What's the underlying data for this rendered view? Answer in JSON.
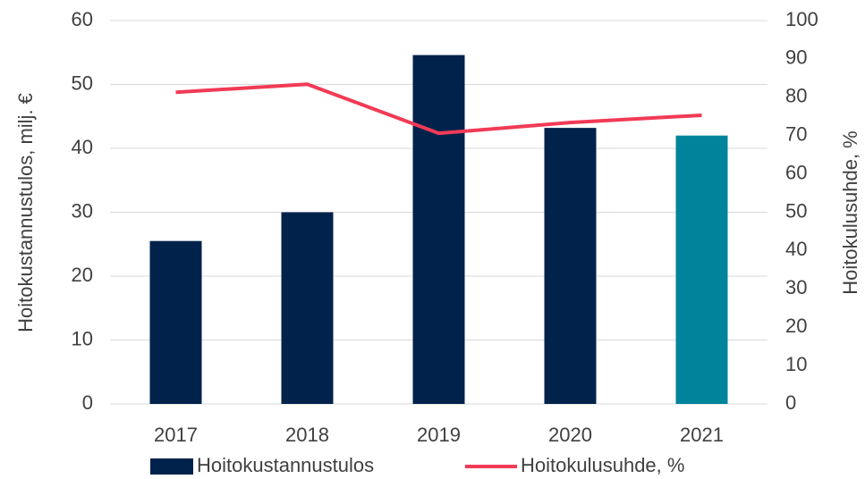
{
  "chart_data": {
    "type": "bar",
    "y_label": "Hoitokustannustulos, milj. €",
    "y2_label": "Hoitokulusuhde, %",
    "categories": [
      "2017",
      "2018",
      "2019",
      "2020",
      "2021"
    ],
    "series": [
      {
        "name": "Hoitokustannustulos",
        "type": "bar",
        "color": "#00224b",
        "colors": [
          "#00224b",
          "#00224b",
          "#00224b",
          "#00224b",
          "#00849b"
        ],
        "values": [
          25.5,
          30.0,
          54.6,
          43.2,
          42.0
        ]
      },
      {
        "name": "Hoitokulusuhde, %",
        "type": "line",
        "axis": "y2",
        "color": "#f23a56",
        "values": [
          81.3,
          83.4,
          70.6,
          73.4,
          75.3
        ]
      }
    ],
    "ylim": [
      0,
      60
    ],
    "yticks": [
      0,
      10,
      20,
      30,
      40,
      50,
      60
    ],
    "y2lim": [
      0,
      100
    ],
    "y2ticks": [
      0,
      10,
      20,
      30,
      40,
      50,
      60,
      70,
      80,
      90,
      100
    ],
    "grid": true,
    "legend": "bottom"
  }
}
